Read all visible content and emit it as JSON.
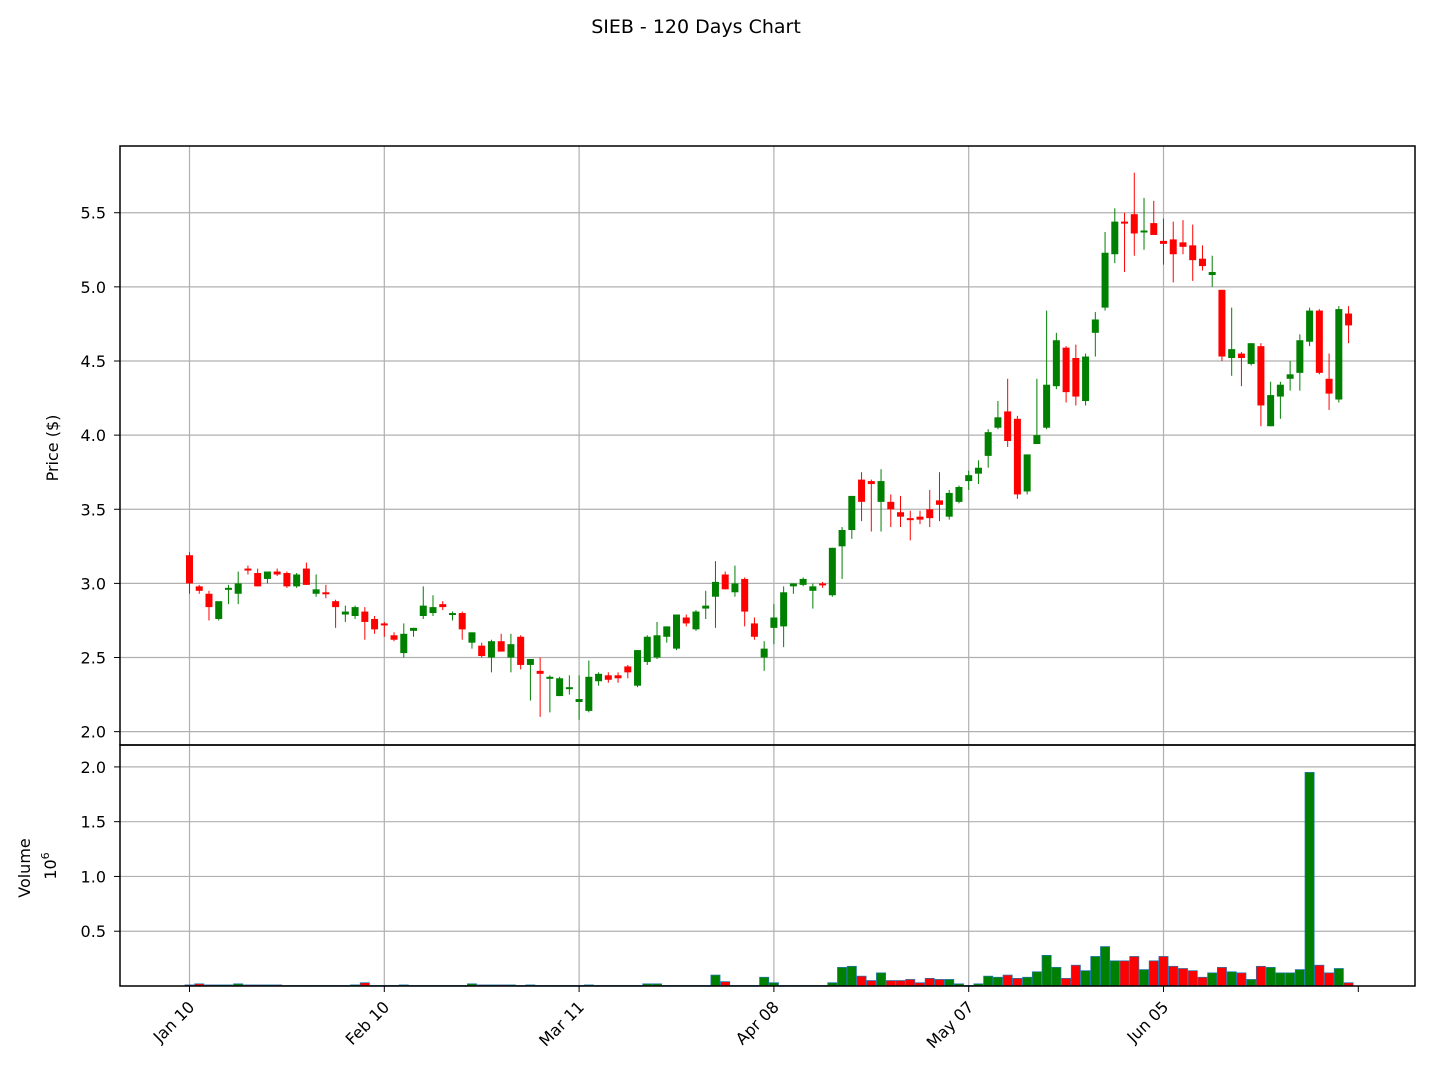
{
  "chart_data": {
    "type": "candlestick",
    "title": "SIEB - 120 Days Chart",
    "colors": {
      "up": "#008000",
      "down": "#ff0000",
      "volume_edge": "#1f77b4",
      "grid": "#b0b0b0"
    },
    "grid": true,
    "date_ticks": [
      "Jan 10",
      "Feb 10",
      "Mar 11",
      "Apr 08",
      "May 07",
      "Jun 05"
    ],
    "date_tick_days": [
      0,
      20,
      40,
      60,
      80,
      100
    ],
    "price_panel": {
      "ylabel": "Price ($)",
      "ylim": [
        1.91,
        5.95
      ],
      "yticks": [
        2.0,
        2.5,
        3.0,
        3.5,
        4.0,
        4.5,
        5.0,
        5.5
      ]
    },
    "volume_panel": {
      "ylabel": "Volume",
      "scale_label": "10^6",
      "ylim": [
        0,
        2.2
      ],
      "yticks": [
        0.5,
        1.0,
        1.5,
        2.0
      ]
    },
    "candles": [
      [
        3.19,
        3.21,
        2.93,
        3.0,
        0.01
      ],
      [
        2.98,
        2.99,
        2.93,
        2.95,
        0.02
      ],
      [
        2.93,
        2.95,
        2.75,
        2.84,
        0.01
      ],
      [
        2.76,
        2.86,
        2.75,
        2.88,
        0.01
      ],
      [
        2.97,
        2.99,
        2.86,
        2.97,
        0.01
      ],
      [
        2.93,
        3.08,
        2.86,
        3.0,
        0.02
      ],
      [
        3.1,
        3.12,
        3.06,
        3.09,
        0.01
      ],
      [
        3.07,
        3.1,
        2.98,
        2.98,
        0.01
      ],
      [
        3.03,
        3.08,
        3.0,
        3.08,
        0.01
      ],
      [
        3.08,
        3.1,
        3.05,
        3.06,
        0.01
      ],
      [
        3.07,
        3.08,
        2.97,
        2.98,
        0.005
      ],
      [
        2.98,
        3.07,
        2.97,
        3.06,
        0.005
      ],
      [
        3.1,
        3.14,
        2.99,
        2.99,
        0.005
      ],
      [
        2.93,
        3.06,
        2.91,
        2.96,
        0.005
      ],
      [
        2.94,
        2.99,
        2.9,
        2.93,
        0.005
      ],
      [
        2.88,
        2.89,
        2.7,
        2.84,
        0.005
      ],
      [
        2.79,
        2.85,
        2.74,
        2.81,
        0.005
      ],
      [
        2.78,
        2.85,
        2.76,
        2.84,
        0.01
      ],
      [
        2.81,
        2.84,
        2.62,
        2.74,
        0.03
      ],
      [
        2.76,
        2.78,
        2.66,
        2.69,
        0.005
      ],
      [
        2.73,
        2.74,
        2.64,
        2.72,
        0.005
      ],
      [
        2.65,
        2.67,
        2.61,
        2.62,
        0.005
      ],
      [
        2.53,
        2.73,
        2.5,
        2.66,
        0.01
      ],
      [
        2.68,
        2.7,
        2.64,
        2.7,
        0.005
      ],
      [
        2.78,
        2.98,
        2.76,
        2.85,
        0.005
      ],
      [
        2.8,
        2.92,
        2.78,
        2.84,
        0.005
      ],
      [
        2.86,
        2.88,
        2.82,
        2.84,
        0.005
      ],
      [
        2.79,
        2.81,
        2.75,
        2.8,
        0.005
      ],
      [
        2.8,
        2.81,
        2.62,
        2.69,
        0.005
      ],
      [
        2.6,
        2.67,
        2.56,
        2.67,
        0.02
      ],
      [
        2.58,
        2.6,
        2.5,
        2.51,
        0.01
      ],
      [
        2.5,
        2.62,
        2.4,
        2.61,
        0.01
      ],
      [
        2.61,
        2.66,
        2.55,
        2.54,
        0.01
      ],
      [
        2.5,
        2.66,
        2.4,
        2.59,
        0.01
      ],
      [
        2.64,
        2.65,
        2.42,
        2.45,
        0.005
      ],
      [
        2.45,
        2.48,
        2.21,
        2.49,
        0.01
      ],
      [
        2.41,
        2.5,
        2.1,
        2.39,
        0.005
      ],
      [
        2.36,
        2.38,
        2.13,
        2.37,
        0.005
      ],
      [
        2.24,
        2.37,
        2.24,
        2.36,
        0.005
      ],
      [
        2.3,
        2.38,
        2.25,
        2.3,
        0.005
      ],
      [
        2.2,
        2.38,
        2.08,
        2.22,
        0.005
      ],
      [
        2.14,
        2.48,
        2.13,
        2.37,
        0.01
      ],
      [
        2.34,
        2.4,
        2.31,
        2.39,
        0.005
      ],
      [
        2.38,
        2.4,
        2.33,
        2.35,
        0.005
      ],
      [
        2.38,
        2.4,
        2.33,
        2.36,
        0.005
      ],
      [
        2.44,
        2.45,
        2.36,
        2.4,
        0.005
      ],
      [
        2.31,
        2.55,
        2.3,
        2.55,
        0.005
      ],
      [
        2.47,
        2.65,
        2.45,
        2.64,
        0.02
      ],
      [
        2.5,
        2.74,
        2.49,
        2.65,
        0.02
      ],
      [
        2.64,
        2.71,
        2.6,
        2.71,
        0.005
      ],
      [
        2.56,
        2.79,
        2.55,
        2.79,
        0.005
      ],
      [
        2.77,
        2.79,
        2.71,
        2.73,
        0.005
      ],
      [
        2.69,
        2.82,
        2.68,
        2.81,
        0.005
      ],
      [
        2.83,
        2.95,
        2.76,
        2.85,
        0.005
      ],
      [
        2.91,
        3.15,
        2.7,
        3.01,
        0.1
      ],
      [
        3.06,
        3.08,
        2.96,
        2.96,
        0.04
      ],
      [
        2.94,
        3.12,
        2.91,
        3.0,
        0.005
      ],
      [
        3.03,
        3.04,
        2.71,
        2.81,
        0.005
      ],
      [
        2.73,
        2.77,
        2.62,
        2.64,
        0.005
      ],
      [
        2.5,
        2.61,
        2.41,
        2.56,
        0.08
      ],
      [
        2.7,
        2.86,
        2.59,
        2.77,
        0.03
      ],
      [
        2.71,
        2.98,
        2.57,
        2.94,
        0.005
      ],
      [
        2.98,
        3.0,
        2.93,
        3.0,
        0.005
      ],
      [
        2.99,
        3.04,
        2.98,
        3.03,
        0.005
      ],
      [
        2.95,
        3.0,
        2.83,
        2.98,
        0.005
      ],
      [
        3.0,
        3.01,
        2.97,
        2.99,
        0.005
      ],
      [
        2.92,
        3.24,
        2.91,
        3.24,
        0.03
      ],
      [
        3.25,
        3.38,
        3.03,
        3.36,
        0.17
      ],
      [
        3.36,
        3.59,
        3.3,
        3.59,
        0.18
      ],
      [
        3.7,
        3.75,
        3.42,
        3.55,
        0.09
      ],
      [
        3.69,
        3.7,
        3.35,
        3.67,
        0.05
      ],
      [
        3.55,
        3.77,
        3.35,
        3.69,
        0.12
      ],
      [
        3.55,
        3.6,
        3.38,
        3.5,
        0.05
      ],
      [
        3.48,
        3.59,
        3.38,
        3.45,
        0.05
      ],
      [
        3.44,
        3.49,
        3.29,
        3.43,
        0.06
      ],
      [
        3.45,
        3.49,
        3.4,
        3.43,
        0.03
      ],
      [
        3.5,
        3.63,
        3.38,
        3.44,
        0.07
      ],
      [
        3.56,
        3.75,
        3.42,
        3.53,
        0.06
      ],
      [
        3.45,
        3.63,
        3.43,
        3.61,
        0.06
      ],
      [
        3.55,
        3.66,
        3.54,
        3.65,
        0.02
      ],
      [
        3.69,
        3.76,
        3.63,
        3.73,
        0.005
      ],
      [
        3.74,
        3.83,
        3.67,
        3.78,
        0.02
      ],
      [
        3.86,
        4.04,
        3.78,
        4.02,
        0.09
      ],
      [
        4.05,
        4.23,
        4.04,
        4.12,
        0.08
      ],
      [
        4.16,
        4.38,
        3.92,
        3.96,
        0.1
      ],
      [
        4.11,
        4.13,
        3.57,
        3.6,
        0.07
      ],
      [
        3.62,
        3.86,
        3.6,
        3.87,
        0.08
      ],
      [
        3.94,
        4.38,
        3.94,
        4.0,
        0.13
      ],
      [
        4.05,
        4.84,
        4.04,
        4.34,
        0.28
      ],
      [
        4.33,
        4.69,
        4.31,
        4.64,
        0.17
      ],
      [
        4.59,
        4.6,
        4.22,
        4.29,
        0.07
      ],
      [
        4.52,
        4.61,
        4.2,
        4.26,
        0.19
      ],
      [
        4.23,
        4.55,
        4.2,
        4.53,
        0.14
      ],
      [
        4.69,
        4.83,
        4.53,
        4.78,
        0.27
      ],
      [
        4.86,
        5.37,
        4.84,
        5.23,
        0.36
      ],
      [
        5.22,
        5.53,
        5.16,
        5.44,
        0.23
      ],
      [
        5.44,
        5.5,
        5.1,
        5.43,
        0.23
      ],
      [
        5.49,
        5.77,
        5.21,
        5.36,
        0.27
      ],
      [
        5.38,
        5.6,
        5.25,
        5.38,
        0.15
      ],
      [
        5.43,
        5.58,
        5.37,
        5.35,
        0.23
      ],
      [
        5.31,
        5.46,
        5.15,
        5.29,
        0.27
      ],
      [
        5.32,
        5.44,
        5.03,
        5.22,
        0.18
      ],
      [
        5.3,
        5.45,
        5.22,
        5.27,
        0.16
      ],
      [
        5.28,
        5.42,
        5.04,
        5.18,
        0.14
      ],
      [
        5.19,
        5.28,
        5.11,
        5.14,
        0.08
      ],
      [
        5.08,
        5.21,
        5.0,
        5.1,
        0.12
      ],
      [
        4.98,
        4.98,
        4.5,
        4.53,
        0.17
      ],
      [
        4.52,
        4.86,
        4.4,
        4.58,
        0.13
      ],
      [
        4.55,
        4.56,
        4.33,
        4.52,
        0.12
      ],
      [
        4.48,
        4.62,
        4.47,
        4.62,
        0.06
      ],
      [
        4.6,
        4.62,
        4.06,
        4.2,
        0.18
      ],
      [
        4.06,
        4.36,
        4.06,
        4.27,
        0.17
      ],
      [
        4.26,
        4.36,
        4.11,
        4.34,
        0.12
      ],
      [
        4.38,
        4.5,
        4.3,
        4.41,
        0.12
      ],
      [
        4.42,
        4.68,
        4.3,
        4.64,
        0.15
      ],
      [
        4.63,
        4.86,
        4.6,
        4.84,
        1.95
      ],
      [
        4.84,
        4.85,
        4.41,
        4.42,
        0.19
      ],
      [
        4.38,
        4.55,
        4.17,
        4.28,
        0.12
      ],
      [
        4.24,
        4.87,
        4.22,
        4.85,
        0.16
      ],
      [
        4.82,
        4.87,
        4.62,
        4.74,
        0.03
      ]
    ]
  }
}
